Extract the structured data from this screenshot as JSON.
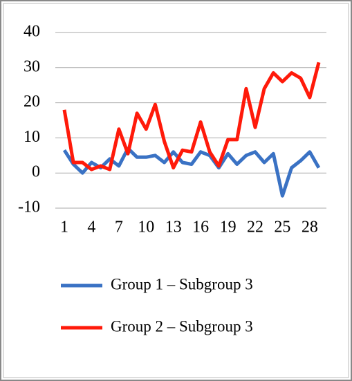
{
  "chart_data": {
    "type": "line",
    "categories": [
      "1",
      null,
      null,
      "4",
      null,
      null,
      "7",
      null,
      null,
      "10",
      null,
      null,
      "13",
      null,
      null,
      "16",
      null,
      null,
      "19",
      null,
      null,
      "22",
      null,
      null,
      "25",
      null,
      null,
      "28",
      null
    ],
    "series": [
      {
        "name": "Group 1 – Subgroup 3",
        "color": "#3a72c4",
        "values": [
          6.5,
          2.5,
          0,
          3,
          1.5,
          4,
          2,
          7,
          4.5,
          4.5,
          5,
          3,
          6,
          3,
          2.5,
          6,
          5,
          1.5,
          5.5,
          2.5,
          5,
          6,
          3,
          5.5,
          -6.5,
          1.5,
          3.5,
          6,
          1.5
        ]
      },
      {
        "name": "Group 2 – Subgroup 3",
        "color": "#ff1a0a",
        "values": [
          18,
          3,
          3,
          1,
          2,
          1,
          12.5,
          5.5,
          17,
          12.5,
          19.5,
          9,
          1.5,
          6.5,
          6,
          14.5,
          6,
          2,
          9.5,
          9.5,
          24,
          13,
          24,
          28.5,
          26,
          28.5,
          27,
          21.5,
          31.5
        ]
      }
    ],
    "ylim": [
      -10,
      40
    ],
    "yticks": [
      -10,
      0,
      10,
      20,
      30,
      40
    ],
    "grid": true,
    "legend": "bottom"
  }
}
